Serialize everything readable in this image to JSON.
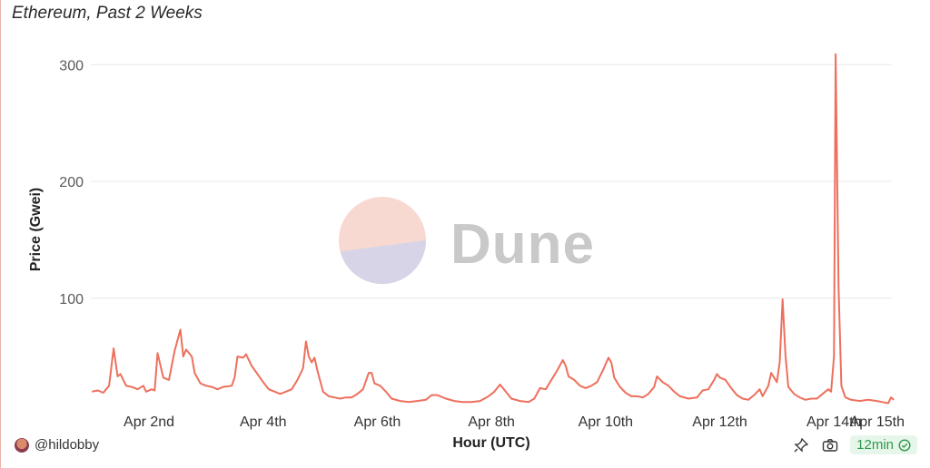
{
  "title": "Ethereum, Past 2 Weeks",
  "author": "@hildobby",
  "watermark": "Dune",
  "refresh_label": "12min",
  "colors": {
    "line": "#ee6f5c",
    "grid": "#e8e8e8",
    "accent": "#2e9a4b"
  },
  "icons": [
    "avatar",
    "pin-icon",
    "camera-icon",
    "check-circle-icon",
    "dune-logo-icon"
  ],
  "chart_data": {
    "type": "line",
    "title": "Ethereum, Past 2 Weeks",
    "xlabel": "Hour (UTC)",
    "ylabel": "Price (Gwei)",
    "x_ticks": [
      "Apr 2nd",
      "Apr 4th",
      "Apr 6th",
      "Apr 8th",
      "Apr 10th",
      "Apr 12th",
      "Apr 14th",
      "Apr 15th"
    ],
    "x_tick_days": [
      2,
      4,
      6,
      8,
      10,
      12,
      14,
      15
    ],
    "y_ticks": [
      100,
      200,
      300
    ],
    "ylim": [
      0,
      320
    ],
    "xlim_days": [
      1.0,
      15.05
    ],
    "grid": true,
    "legend": "none",
    "series": [
      {
        "points": [
          [
            1.0,
            20
          ],
          [
            1.1,
            21
          ],
          [
            1.2,
            19
          ],
          [
            1.3,
            25
          ],
          [
            1.38,
            57
          ],
          [
            1.45,
            33
          ],
          [
            1.5,
            35
          ],
          [
            1.55,
            30
          ],
          [
            1.6,
            25
          ],
          [
            1.7,
            24
          ],
          [
            1.8,
            22
          ],
          [
            1.9,
            25
          ],
          [
            1.95,
            20
          ],
          [
            2.05,
            22
          ],
          [
            2.1,
            21
          ],
          [
            2.15,
            53
          ],
          [
            2.25,
            32
          ],
          [
            2.35,
            30
          ],
          [
            2.45,
            55
          ],
          [
            2.55,
            73
          ],
          [
            2.6,
            50
          ],
          [
            2.65,
            56
          ],
          [
            2.75,
            50
          ],
          [
            2.8,
            36
          ],
          [
            2.9,
            27
          ],
          [
            3.0,
            25
          ],
          [
            3.1,
            24
          ],
          [
            3.2,
            22
          ],
          [
            3.3,
            24
          ],
          [
            3.45,
            25
          ],
          [
            3.5,
            32
          ],
          [
            3.55,
            50
          ],
          [
            3.65,
            49
          ],
          [
            3.7,
            52
          ],
          [
            3.8,
            42
          ],
          [
            3.9,
            35
          ],
          [
            4.0,
            28
          ],
          [
            4.1,
            22
          ],
          [
            4.2,
            20
          ],
          [
            4.3,
            18
          ],
          [
            4.4,
            20
          ],
          [
            4.5,
            22
          ],
          [
            4.6,
            30
          ],
          [
            4.7,
            40
          ],
          [
            4.75,
            63
          ],
          [
            4.8,
            50
          ],
          [
            4.85,
            45
          ],
          [
            4.9,
            49
          ],
          [
            4.95,
            38
          ],
          [
            5.05,
            20
          ],
          [
            5.15,
            16
          ],
          [
            5.25,
            15
          ],
          [
            5.35,
            14
          ],
          [
            5.45,
            15
          ],
          [
            5.55,
            15
          ],
          [
            5.65,
            18
          ],
          [
            5.75,
            22
          ],
          [
            5.85,
            36
          ],
          [
            5.9,
            36
          ],
          [
            5.95,
            27
          ],
          [
            6.05,
            25
          ],
          [
            6.15,
            20
          ],
          [
            6.25,
            14
          ],
          [
            6.4,
            12
          ],
          [
            6.55,
            11
          ],
          [
            6.7,
            12
          ],
          [
            6.85,
            13
          ],
          [
            6.95,
            17
          ],
          [
            7.05,
            17
          ],
          [
            7.2,
            14
          ],
          [
            7.35,
            12
          ],
          [
            7.5,
            11
          ],
          [
            7.65,
            11
          ],
          [
            7.8,
            12
          ],
          [
            7.95,
            16
          ],
          [
            8.05,
            20
          ],
          [
            8.15,
            26
          ],
          [
            8.25,
            20
          ],
          [
            8.35,
            14
          ],
          [
            8.5,
            12
          ],
          [
            8.65,
            11
          ],
          [
            8.75,
            14
          ],
          [
            8.85,
            23
          ],
          [
            8.95,
            22
          ],
          [
            9.05,
            30
          ],
          [
            9.15,
            38
          ],
          [
            9.25,
            47
          ],
          [
            9.3,
            42
          ],
          [
            9.35,
            33
          ],
          [
            9.45,
            30
          ],
          [
            9.55,
            25
          ],
          [
            9.65,
            23
          ],
          [
            9.75,
            25
          ],
          [
            9.85,
            28
          ],
          [
            9.95,
            38
          ],
          [
            10.05,
            49
          ],
          [
            10.1,
            45
          ],
          [
            10.15,
            32
          ],
          [
            10.25,
            24
          ],
          [
            10.35,
            19
          ],
          [
            10.45,
            16
          ],
          [
            10.55,
            16
          ],
          [
            10.65,
            15
          ],
          [
            10.75,
            18
          ],
          [
            10.85,
            24
          ],
          [
            10.9,
            33
          ],
          [
            11.0,
            28
          ],
          [
            11.1,
            25
          ],
          [
            11.2,
            20
          ],
          [
            11.3,
            16
          ],
          [
            11.45,
            14
          ],
          [
            11.6,
            15
          ],
          [
            11.7,
            21
          ],
          [
            11.8,
            22
          ],
          [
            11.9,
            30
          ],
          [
            11.95,
            35
          ],
          [
            12.0,
            32
          ],
          [
            12.1,
            30
          ],
          [
            12.2,
            23
          ],
          [
            12.3,
            17
          ],
          [
            12.4,
            14
          ],
          [
            12.5,
            13
          ],
          [
            12.6,
            17
          ],
          [
            12.7,
            22
          ],
          [
            12.75,
            16
          ],
          [
            12.85,
            25
          ],
          [
            12.9,
            36
          ],
          [
            13.0,
            28
          ],
          [
            13.05,
            45
          ],
          [
            13.1,
            99
          ],
          [
            13.15,
            52
          ],
          [
            13.2,
            24
          ],
          [
            13.3,
            18
          ],
          [
            13.4,
            15
          ],
          [
            13.5,
            13
          ],
          [
            13.6,
            14
          ],
          [
            13.7,
            14
          ],
          [
            13.8,
            18
          ],
          [
            13.9,
            22
          ],
          [
            13.95,
            20
          ],
          [
            14.0,
            50
          ],
          [
            14.03,
            309
          ],
          [
            14.08,
            110
          ],
          [
            14.13,
            25
          ],
          [
            14.2,
            15
          ],
          [
            14.3,
            13
          ],
          [
            14.45,
            12
          ],
          [
            14.6,
            13
          ],
          [
            14.75,
            12
          ],
          [
            14.85,
            11
          ],
          [
            14.95,
            10
          ],
          [
            15.0,
            15
          ],
          [
            15.05,
            13
          ]
        ]
      }
    ]
  }
}
